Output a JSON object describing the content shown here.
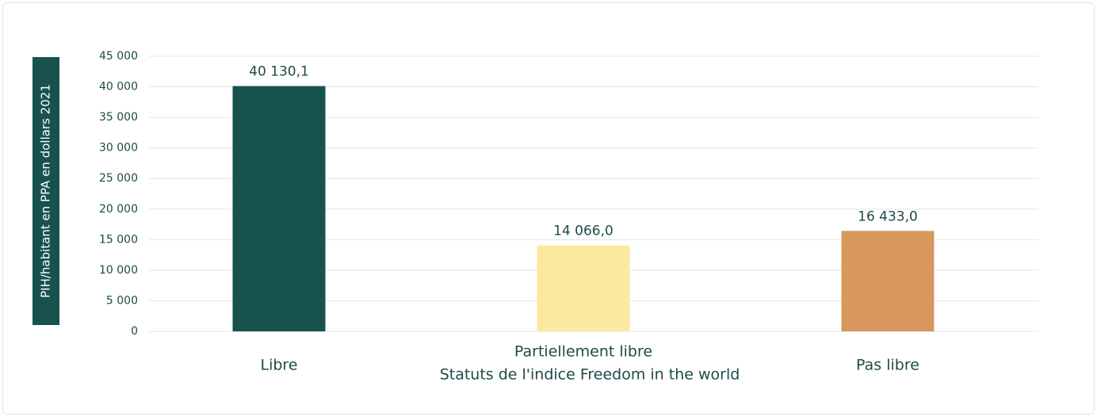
{
  "chart_data": {
    "type": "bar",
    "y_label": "PIH/habitant en PPA en dollars 2021",
    "x_label": "Statuts de l'indice Freedom in the world",
    "categories": [
      "Libre",
      "Partiellement libre",
      "Pas libre"
    ],
    "values": [
      40130.1,
      14066.0,
      16433.0
    ],
    "value_labels": [
      "40 130,1",
      "14 066,0",
      "16 433,0"
    ],
    "colors": [
      "#17524f",
      "#fbe9a0",
      "#d8975c"
    ],
    "ylim": [
      0,
      45000
    ],
    "yticks": [
      0,
      {
        "value": 5000,
        "label": "5 000"
      },
      {
        "value": 10000,
        "label": "10 000"
      },
      {
        "value": 15000,
        "label": "15 000"
      },
      {
        "value": 20000,
        "label": "20 000"
      },
      {
        "value": 25000,
        "label": "25 000"
      },
      {
        "value": 30000,
        "label": "30 000"
      },
      {
        "value": 35000,
        "label": "35 000"
      },
      {
        "value": 40000,
        "label": "40 000"
      },
      {
        "value": 45000,
        "label": "45 000"
      }
    ],
    "grid": true
  }
}
